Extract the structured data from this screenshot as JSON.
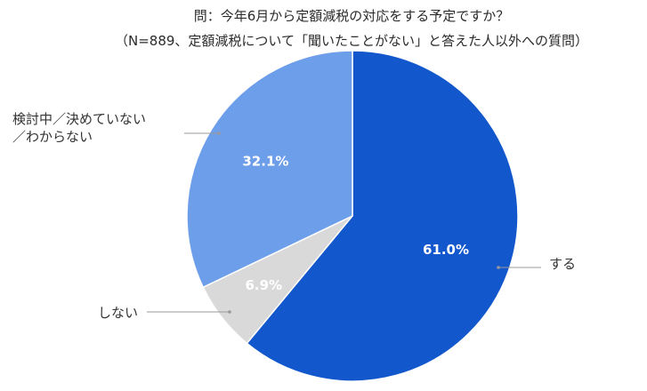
{
  "chart_data": {
    "type": "pie",
    "title": "問：今年6月から定額減税の対応をする予定ですか？",
    "subtitle": "（N=889、定額減税について「聞いたことがない」と答えた人以外への質問）",
    "slices": [
      {
        "label": "する",
        "value": 61.0,
        "display": "61.0%",
        "color": "#1257cc"
      },
      {
        "label": "しない",
        "value": 6.9,
        "display": "6.9%",
        "color": "#d9d9d9"
      },
      {
        "label": "検討中／決めていない／わからない",
        "label_lines": [
          "検討中／決めていない",
          "／わからない"
        ],
        "value": 32.1,
        "display": "32.1%",
        "color": "#6d9eea"
      }
    ]
  }
}
